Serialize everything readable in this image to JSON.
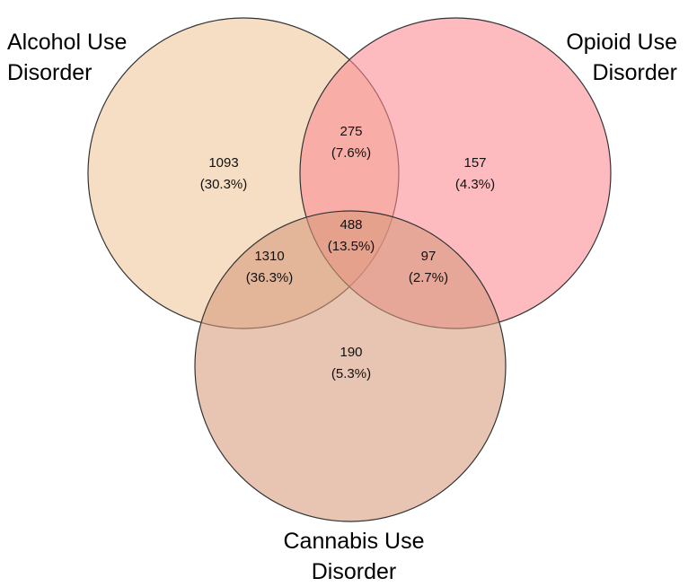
{
  "sets": [
    {
      "key": "alcohol",
      "label_lines": [
        "Alcohol Use",
        "Disorder"
      ],
      "color": "#f0c79a"
    },
    {
      "key": "opioid",
      "label_lines": [
        "Opioid Use",
        "Disorder"
      ],
      "color": "#fb8a93"
    },
    {
      "key": "cannabis",
      "label_lines": [
        "Cannabis Use",
        "Disorder"
      ],
      "color": "#d89a7a"
    }
  ],
  "regions": [
    {
      "key": "alcohol_only",
      "sets": [
        "alcohol"
      ],
      "count": "1093",
      "percent": "(30.3%)"
    },
    {
      "key": "alcohol_opioid",
      "sets": [
        "alcohol",
        "opioid"
      ],
      "count": "275",
      "percent": "(7.6%)"
    },
    {
      "key": "opioid_only",
      "sets": [
        "opioid"
      ],
      "count": "157",
      "percent": "(4.3%)"
    },
    {
      "key": "all_three",
      "sets": [
        "alcohol",
        "opioid",
        "cannabis"
      ],
      "count": "488",
      "percent": "(13.5%)"
    },
    {
      "key": "alcohol_cannabis",
      "sets": [
        "alcohol",
        "cannabis"
      ],
      "count": "1310",
      "percent": "(36.3%)"
    },
    {
      "key": "opioid_cannabis",
      "sets": [
        "opioid",
        "cannabis"
      ],
      "count": "97",
      "percent": "(2.7%)"
    },
    {
      "key": "cannabis_only",
      "sets": [
        "cannabis"
      ],
      "count": "190",
      "percent": "(5.3%)"
    }
  ]
}
